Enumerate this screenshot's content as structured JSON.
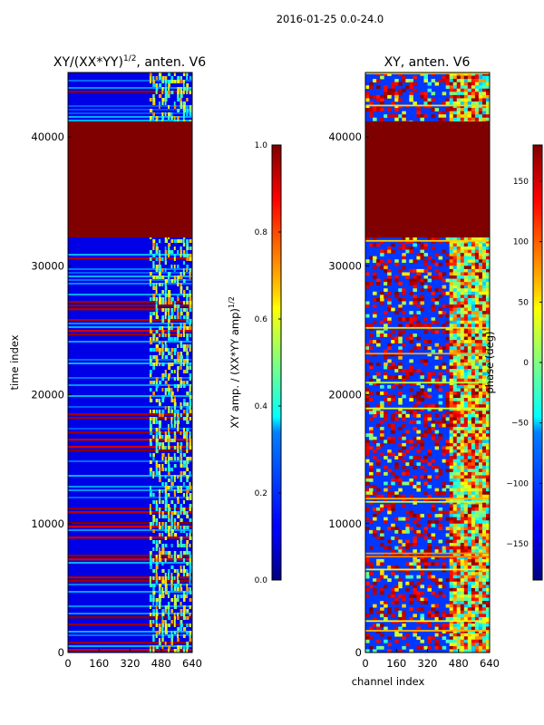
{
  "figure": {
    "suptitle": "2016-01-25 0.0-24.0"
  },
  "chart_data": [
    {
      "type": "heatmap",
      "title": "XY/(XX*YY)",
      "title_superscript": "1/2",
      "title_suffix": ", anten. V6",
      "xlabel": "",
      "ylabel": "time index",
      "xlim": [
        0,
        640
      ],
      "ylim": [
        0,
        45000
      ],
      "xticks": [
        0,
        160,
        320,
        480,
        640
      ],
      "yticks": [
        0,
        10000,
        20000,
        30000,
        40000
      ],
      "xtick_labels": [
        "0",
        "160",
        "320",
        "480",
        "640"
      ],
      "ytick_labels": [
        "0",
        "10000",
        "20000",
        "30000",
        "40000"
      ],
      "background_value": 0.1,
      "saturated_band": {
        "y_from": 32200,
        "y_to": 41200,
        "value": 1.0
      },
      "bright_column_range": [
        420,
        640
      ],
      "colorbar": {
        "label": "XY amp. / (XX*YY amp)",
        "label_superscript": "1/2",
        "range": [
          0.0,
          1.0
        ],
        "ticks": [
          0.0,
          0.2,
          0.4,
          0.6,
          0.8,
          1.0
        ],
        "tick_labels": [
          "0.0",
          "0.2",
          "0.4",
          "0.6",
          "0.8",
          "1.0"
        ],
        "colormap": "jet"
      }
    },
    {
      "type": "heatmap",
      "title": "XY, anten. V6",
      "xlabel": "channel index",
      "ylabel": "",
      "xlim": [
        0,
        640
      ],
      "ylim": [
        0,
        45000
      ],
      "xticks": [
        0,
        160,
        320,
        480,
        640
      ],
      "yticks": [
        0,
        10000,
        20000,
        30000,
        40000
      ],
      "xtick_labels": [
        "0",
        "160",
        "320",
        "480",
        "640"
      ],
      "ytick_labels": [
        "0",
        "10000",
        "20000",
        "30000",
        "40000"
      ],
      "saturated_band": {
        "y_from": 32200,
        "y_to": 41200,
        "value": 180
      },
      "colorbar": {
        "label": "phase (deg)",
        "range": [
          -180,
          180
        ],
        "ticks": [
          -150,
          -100,
          -50,
          0,
          50,
          100,
          150
        ],
        "tick_labels": [
          "−150",
          "−100",
          "−50",
          "0",
          "50",
          "100",
          "150"
        ],
        "colormap": "jet"
      }
    }
  ]
}
